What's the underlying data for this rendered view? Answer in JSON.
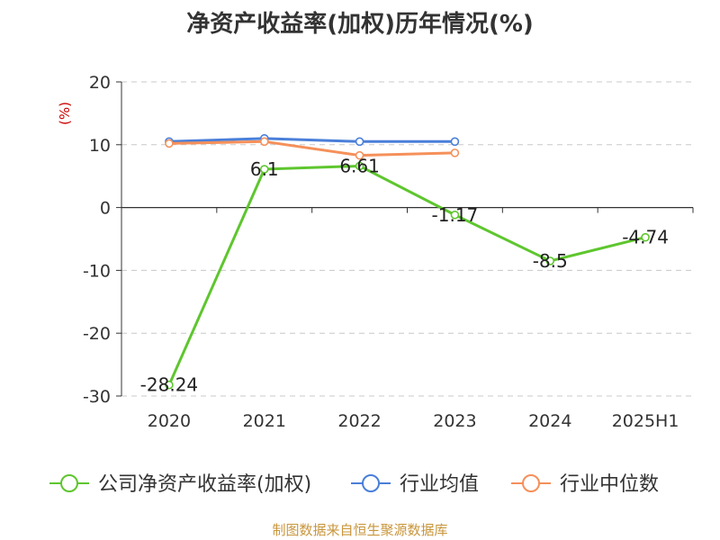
{
  "chart_data": {
    "type": "line",
    "title": "净资产收益率(加权)历年情况(%)",
    "ylabel": "(%)",
    "categories": [
      "2020",
      "2021",
      "2022",
      "2023",
      "2024",
      "2025H1"
    ],
    "ylim": [
      -30,
      20
    ],
    "yticks": [
      20,
      10,
      0,
      -10,
      -20,
      -30
    ],
    "grid": true,
    "legend_position": "bottom",
    "series": [
      {
        "name": "公司净资产收益率(加权)",
        "color": "#5ec62e",
        "values": [
          -28.24,
          6.1,
          6.61,
          -1.17,
          -8.5,
          -4.74
        ],
        "labels": [
          "-28.24",
          "6.1",
          "6.61",
          "-1.17",
          "-8.5",
          "-4.74"
        ]
      },
      {
        "name": "行业均值",
        "color": "#4a7fd9",
        "values": [
          10.5,
          11.0,
          10.5,
          10.5,
          null,
          null
        ]
      },
      {
        "name": "行业中位数",
        "color": "#f5905a",
        "values": [
          10.2,
          10.5,
          8.3,
          8.7,
          null,
          null
        ]
      }
    ]
  },
  "source": "制图数据来自恒生聚源数据库"
}
